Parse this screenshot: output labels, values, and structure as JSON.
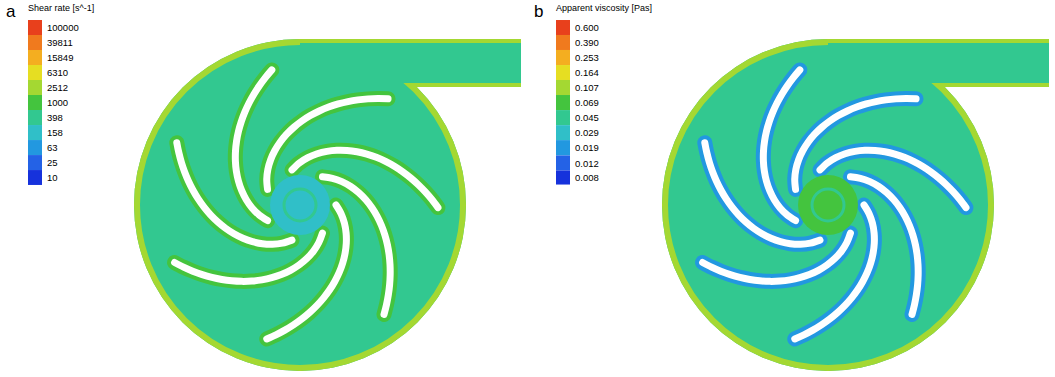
{
  "chart_data": [
    {
      "type": "contour",
      "label": "a",
      "title": "Shear rate [s^-1]",
      "log": true,
      "colorbar": {
        "range": [
          10,
          100000
        ],
        "ticks": [
          100000,
          39811,
          15849,
          6310,
          2512,
          1000,
          398,
          158,
          63,
          25,
          10
        ],
        "colors": [
          "#e8401c",
          "#f07a1e",
          "#f4ae20",
          "#e6de22",
          "#a4d832",
          "#44c43e",
          "#32c890",
          "#30bfc8",
          "#2298e0",
          "#2462e6",
          "#1632dc"
        ]
      },
      "values": [
        398,
        1000,
        2512,
        158
      ]
    },
    {
      "type": "contour",
      "label": "b",
      "title": "Apparent viscosity [Pas]",
      "log": true,
      "colorbar": {
        "range": [
          0.008,
          0.6
        ],
        "ticks": [
          {
            "value": 0.6,
            "label": "0.600"
          },
          {
            "value": 0.39,
            "label": "0.390"
          },
          0.253,
          0.164,
          0.107,
          0.069,
          0.045,
          0.029,
          0.019,
          0.012,
          0.008
        ],
        "colors": [
          "#e8401c",
          "#f07a1e",
          "#f4ae20",
          "#e6de22",
          "#a4d832",
          "#44c43e",
          "#32c890",
          "#30bfc8",
          "#2298e0",
          "#2462e6",
          "#1632dc"
        ]
      },
      "values": [
        0.045,
        0.019,
        0.107,
        0.069
      ]
    }
  ]
}
